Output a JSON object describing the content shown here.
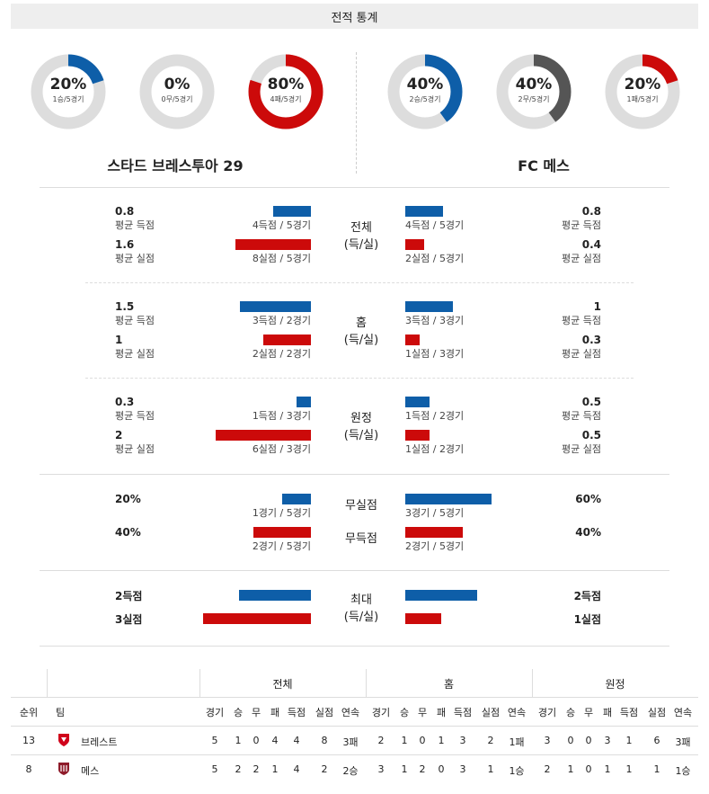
{
  "header": {
    "title": "전적 통계"
  },
  "donuts": {
    "home": [
      {
        "pct": "20%",
        "sub": "1승/5경기",
        "fraction": 0.2,
        "color": "#0e5ea8"
      },
      {
        "pct": "0%",
        "sub": "0무/5경기",
        "fraction": 0.0,
        "color": "#555555"
      },
      {
        "pct": "80%",
        "sub": "4패/5경기",
        "fraction": 0.8,
        "color": "#cc0a0a"
      }
    ],
    "away": [
      {
        "pct": "40%",
        "sub": "2승/5경기",
        "fraction": 0.4,
        "color": "#0e5ea8"
      },
      {
        "pct": "40%",
        "sub": "2무/5경기",
        "fraction": 0.4,
        "color": "#555555"
      },
      {
        "pct": "20%",
        "sub": "1패/5경기",
        "fraction": 0.2,
        "color": "#cc0a0a"
      }
    ]
  },
  "teams": {
    "home_name": "스타드 브레스투아 29",
    "away_name": "FC 메스"
  },
  "colors": {
    "blue": "#0e5ea8",
    "red": "#cc0a0a",
    "donut_track": "#dddddd"
  },
  "sections": [
    {
      "label1": "전체",
      "label2": "(득/실)",
      "rows": [
        {
          "lv": "0.8",
          "lsub": "평균 득점",
          "lbar": "4득점 / 5경기",
          "lfrac": 0.8,
          "rv": "0.8",
          "rsub": "평균 득점",
          "rbar": "4득점 / 5경기",
          "rfrac": 0.8,
          "color": "blue"
        },
        {
          "lv": "1.6",
          "lsub": "평균 실점",
          "lbar": "8실점 / 5경기",
          "lfrac": 1.6,
          "rv": "0.4",
          "rsub": "평균 실점",
          "rbar": "2실점 / 5경기",
          "rfrac": 0.4,
          "color": "red"
        }
      ]
    },
    {
      "label1": "홈",
      "label2": "(득/실)",
      "rows": [
        {
          "lv": "1.5",
          "lsub": "평균 득점",
          "lbar": "3득점 / 2경기",
          "lfrac": 1.5,
          "rv": "1",
          "rsub": "평균 득점",
          "rbar": "3득점 / 3경기",
          "rfrac": 1.0,
          "color": "blue"
        },
        {
          "lv": "1",
          "lsub": "평균 실점",
          "lbar": "2실점 / 2경기",
          "lfrac": 1.0,
          "rv": "0.3",
          "rsub": "평균 실점",
          "rbar": "1실점 / 3경기",
          "rfrac": 0.3,
          "color": "red"
        }
      ]
    },
    {
      "label1": "원정",
      "label2": "(득/실)",
      "rows": [
        {
          "lv": "0.3",
          "lsub": "평균 득점",
          "lbar": "1득점 / 3경기",
          "lfrac": 0.3,
          "rv": "0.5",
          "rsub": "평균 득점",
          "rbar": "1득점 / 2경기",
          "rfrac": 0.5,
          "color": "blue"
        },
        {
          "lv": "2",
          "lsub": "평균 실점",
          "lbar": "6실점 / 3경기",
          "lfrac": 2.0,
          "rv": "0.5",
          "rsub": "평균 실점",
          "rbar": "1실점 / 2경기",
          "rfrac": 0.5,
          "color": "red"
        }
      ]
    }
  ],
  "clean": {
    "rows": [
      {
        "label": "무실점",
        "lv": "20%",
        "lbar": "1경기 / 5경기",
        "lfrac": 0.2,
        "rv": "60%",
        "rbar": "3경기 / 5경기",
        "rfrac": 0.6,
        "color": "blue"
      },
      {
        "label": "무득점",
        "lv": "40%",
        "lbar": "2경기 / 5경기",
        "lfrac": 0.4,
        "rv": "40%",
        "rbar": "2경기 / 5경기",
        "rfrac": 0.4,
        "color": "red"
      }
    ]
  },
  "max": {
    "label1": "최대",
    "label2": "(득/실)",
    "rows": [
      {
        "lv": "2득점",
        "lfrac": 2,
        "rv": "2득점",
        "rfrac": 2,
        "color": "blue"
      },
      {
        "lv": "3실점",
        "lfrac": 3,
        "rv": "1실점",
        "rfrac": 1,
        "color": "red"
      }
    ]
  },
  "table": {
    "groups": [
      "전체",
      "홈",
      "원정"
    ],
    "rank_header": "순위",
    "team_header": "팀",
    "sub_headers": [
      "경기",
      "승",
      "무",
      "패",
      "득점",
      "실점",
      "연속"
    ],
    "rows": [
      {
        "rank": "13",
        "team": "브레스트",
        "crest": "brest-crest-icon",
        "total": [
          "5",
          "1",
          "0",
          "4",
          "4",
          "8",
          "3패"
        ],
        "home": [
          "2",
          "1",
          "0",
          "1",
          "3",
          "2",
          "1패"
        ],
        "away": [
          "3",
          "0",
          "0",
          "3",
          "1",
          "6",
          "3패"
        ]
      },
      {
        "rank": "8",
        "team": "메스",
        "crest": "metz-crest-icon",
        "total": [
          "5",
          "2",
          "2",
          "1",
          "4",
          "2",
          "2승"
        ],
        "home": [
          "3",
          "1",
          "2",
          "0",
          "3",
          "1",
          "1승"
        ],
        "away": [
          "2",
          "1",
          "0",
          "1",
          "1",
          "1",
          "1승"
        ]
      }
    ]
  }
}
